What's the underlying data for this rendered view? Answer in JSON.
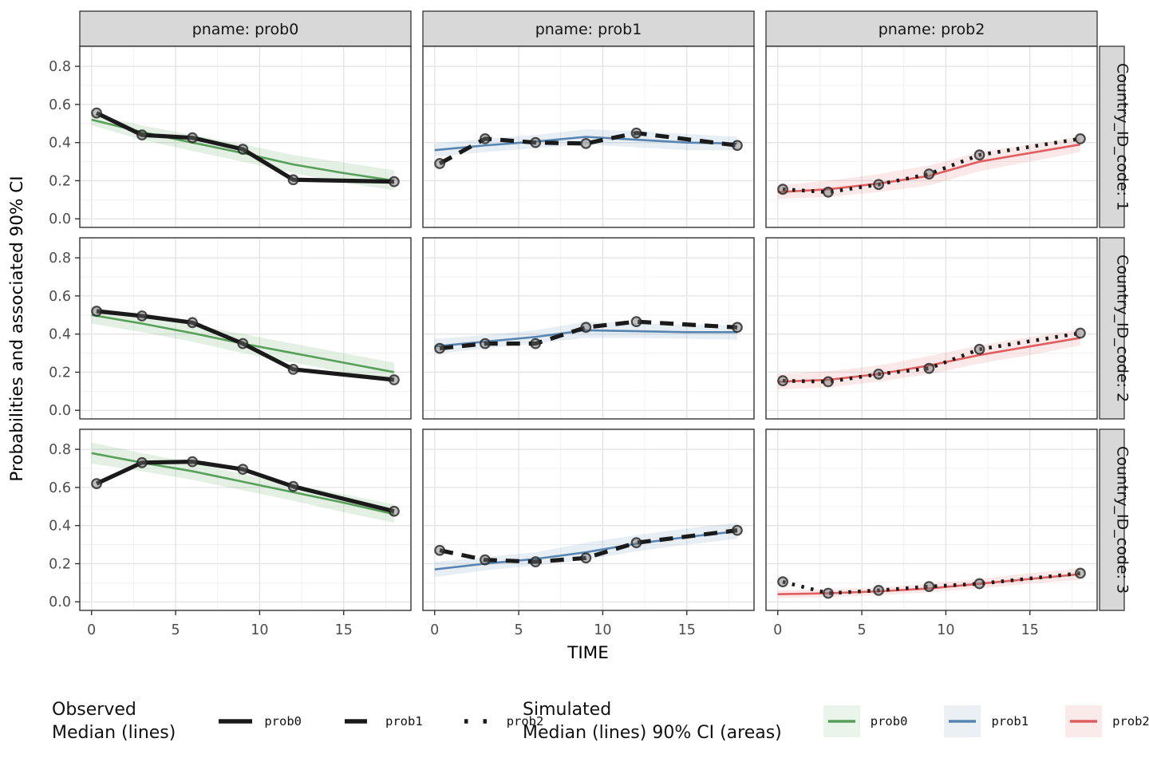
{
  "colors": {
    "observed": "#1a1a1a",
    "prob0": "#57A05A",
    "prob1": "#5784B0",
    "prob2": "#E15E5E",
    "prob0_fill": "rgba(87,160,90,0.16)",
    "prob1_fill": "rgba(87,132,176,0.14)",
    "prob2_fill": "rgba(225,94,94,0.14)",
    "prob0_swatch": "#e9f4ea",
    "prob1_swatch": "#ebf0f5",
    "prob2_swatch": "#fbeaea",
    "strip_bg": "#d8d8d8",
    "strip_border": "#333333",
    "panel_border": "#333333",
    "grid_major": "#e3e3e3",
    "grid_minor": "#f0f0f0",
    "tick_mark": "#333333"
  },
  "legend": {
    "observed": {
      "title_line1": "Observed",
      "title_line2": "Median (lines)",
      "items": [
        {
          "label": "prob0",
          "linestyle": "solid"
        },
        {
          "label": "prob1",
          "linestyle": "dashed"
        },
        {
          "label": "prob2",
          "linestyle": "dotted"
        }
      ]
    },
    "simulated": {
      "title_line1": "Simulated",
      "title_line2": "Median (lines) 90% CI (areas)",
      "items": [
        {
          "label": "prob0",
          "series": "prob0"
        },
        {
          "label": "prob1",
          "series": "prob1"
        },
        {
          "label": "prob2",
          "series": "prob2"
        }
      ]
    }
  },
  "chart_data": {
    "type": "line",
    "xlabel": "TIME",
    "ylabel": "Probabilities and associated 90% CI",
    "x_ticks": [
      0,
      5,
      10,
      15
    ],
    "x_tick_labels": [
      "0",
      "5",
      "10",
      "15"
    ],
    "x_minor_ticks": [
      2.5,
      7.5,
      12.5,
      17.5
    ],
    "y_ticks": [
      0,
      0.2,
      0.4,
      0.6,
      0.8
    ],
    "y_tick_labels": [
      "0.0",
      "0.2",
      "0.4",
      "0.6",
      "0.8"
    ],
    "y_minor_ticks": [
      0.1,
      0.3,
      0.5,
      0.7,
      0.9
    ],
    "xlim": [
      -0.7,
      19.0
    ],
    "ylim": [
      -0.045,
      0.905
    ],
    "grid": true,
    "legend_position": "bottom",
    "col_facets": [
      "pname: prob0",
      "pname: prob1",
      "pname: prob2"
    ],
    "row_facets": [
      "Country_ID_code: 1",
      "Country_ID_code: 2",
      "Country_ID_code: 3"
    ],
    "panels": [
      {
        "facet_row": "Country_ID_code: 1",
        "facet_col": "pname: prob0",
        "series": "prob0",
        "observed": {
          "x": [
            0.3,
            3,
            6,
            9,
            12,
            18
          ],
          "y": [
            0.555,
            0.44,
            0.425,
            0.365,
            0.205,
            0.195
          ]
        },
        "simulated": {
          "x": [
            0,
            3,
            6,
            9,
            12,
            15,
            18
          ],
          "median": [
            0.52,
            0.455,
            0.4,
            0.345,
            0.285,
            0.24,
            0.2
          ],
          "hi": [
            0.55,
            0.49,
            0.44,
            0.39,
            0.335,
            0.295,
            0.255
          ],
          "lo": [
            0.49,
            0.415,
            0.355,
            0.3,
            0.24,
            0.19,
            0.15
          ]
        }
      },
      {
        "facet_row": "Country_ID_code: 1",
        "facet_col": "pname: prob1",
        "series": "prob1",
        "observed": {
          "x": [
            0.3,
            3,
            6,
            9,
            12,
            18
          ],
          "y": [
            0.29,
            0.42,
            0.4,
            0.395,
            0.45,
            0.385
          ]
        },
        "simulated": {
          "x": [
            0,
            3,
            6,
            9,
            12,
            15,
            18
          ],
          "median": [
            0.36,
            0.385,
            0.405,
            0.43,
            0.415,
            0.4,
            0.395
          ],
          "hi": [
            0.395,
            0.42,
            0.44,
            0.47,
            0.46,
            0.445,
            0.43
          ],
          "lo": [
            0.325,
            0.35,
            0.37,
            0.39,
            0.375,
            0.36,
            0.36
          ]
        }
      },
      {
        "facet_row": "Country_ID_code: 1",
        "facet_col": "pname: prob2",
        "series": "prob2",
        "observed": {
          "x": [
            0.3,
            3,
            6,
            9,
            12,
            18
          ],
          "y": [
            0.155,
            0.14,
            0.18,
            0.235,
            0.335,
            0.42
          ]
        },
        "simulated": {
          "x": [
            0,
            3,
            6,
            9,
            12,
            15,
            18
          ],
          "median": [
            0.14,
            0.155,
            0.185,
            0.225,
            0.3,
            0.345,
            0.39
          ],
          "hi": [
            0.175,
            0.2,
            0.235,
            0.28,
            0.35,
            0.39,
            0.43
          ],
          "lo": [
            0.105,
            0.115,
            0.14,
            0.175,
            0.25,
            0.3,
            0.35
          ]
        }
      },
      {
        "facet_row": "Country_ID_code: 2",
        "facet_col": "pname: prob0",
        "series": "prob0",
        "observed": {
          "x": [
            0.3,
            3,
            6,
            9,
            12,
            18
          ],
          "y": [
            0.52,
            0.495,
            0.46,
            0.35,
            0.215,
            0.16
          ]
        },
        "simulated": {
          "x": [
            0,
            3,
            6,
            9,
            12,
            15,
            18
          ],
          "median": [
            0.5,
            0.455,
            0.405,
            0.35,
            0.3,
            0.25,
            0.2
          ],
          "hi": [
            0.545,
            0.5,
            0.45,
            0.4,
            0.35,
            0.3,
            0.25
          ],
          "lo": [
            0.455,
            0.41,
            0.36,
            0.3,
            0.25,
            0.2,
            0.155
          ]
        }
      },
      {
        "facet_row": "Country_ID_code: 2",
        "facet_col": "pname: prob1",
        "series": "prob1",
        "observed": {
          "x": [
            0.3,
            3,
            6,
            9,
            12,
            18
          ],
          "y": [
            0.325,
            0.35,
            0.35,
            0.435,
            0.465,
            0.435
          ]
        },
        "simulated": {
          "x": [
            0,
            3,
            6,
            9,
            12,
            15,
            18
          ],
          "median": [
            0.335,
            0.36,
            0.385,
            0.42,
            0.415,
            0.41,
            0.41
          ],
          "hi": [
            0.375,
            0.395,
            0.42,
            0.465,
            0.455,
            0.45,
            0.445
          ],
          "lo": [
            0.295,
            0.325,
            0.35,
            0.38,
            0.38,
            0.375,
            0.37
          ]
        }
      },
      {
        "facet_row": "Country_ID_code: 2",
        "facet_col": "pname: prob2",
        "series": "prob2",
        "observed": {
          "x": [
            0.3,
            3,
            6,
            9,
            12,
            18
          ],
          "y": [
            0.155,
            0.15,
            0.19,
            0.22,
            0.32,
            0.405
          ]
        },
        "simulated": {
          "x": [
            0,
            3,
            6,
            9,
            12,
            15,
            18
          ],
          "median": [
            0.15,
            0.16,
            0.19,
            0.235,
            0.29,
            0.335,
            0.38
          ],
          "hi": [
            0.19,
            0.205,
            0.235,
            0.285,
            0.34,
            0.385,
            0.425
          ],
          "lo": [
            0.11,
            0.12,
            0.15,
            0.19,
            0.245,
            0.29,
            0.34
          ]
        }
      },
      {
        "facet_row": "Country_ID_code: 3",
        "facet_col": "pname: prob0",
        "series": "prob0",
        "observed": {
          "x": [
            0.3,
            3,
            6,
            9,
            12,
            18
          ],
          "y": [
            0.62,
            0.73,
            0.735,
            0.695,
            0.605,
            0.475
          ]
        },
        "simulated": {
          "x": [
            0,
            3,
            6,
            9,
            12,
            15,
            18
          ],
          "median": [
            0.78,
            0.73,
            0.685,
            0.63,
            0.575,
            0.52,
            0.46
          ],
          "hi": [
            0.835,
            0.78,
            0.73,
            0.67,
            0.615,
            0.565,
            0.51
          ],
          "lo": [
            0.725,
            0.685,
            0.64,
            0.585,
            0.53,
            0.47,
            0.415
          ]
        }
      },
      {
        "facet_row": "Country_ID_code: 3",
        "facet_col": "pname: prob1",
        "series": "prob1",
        "observed": {
          "x": [
            0.3,
            3,
            6,
            9,
            12,
            18
          ],
          "y": [
            0.27,
            0.22,
            0.21,
            0.23,
            0.31,
            0.375
          ]
        },
        "simulated": {
          "x": [
            0,
            3,
            6,
            9,
            12,
            15,
            18
          ],
          "median": [
            0.17,
            0.2,
            0.225,
            0.26,
            0.305,
            0.34,
            0.37
          ],
          "hi": [
            0.21,
            0.235,
            0.26,
            0.31,
            0.35,
            0.385,
            0.415
          ],
          "lo": [
            0.13,
            0.165,
            0.19,
            0.22,
            0.265,
            0.3,
            0.33
          ]
        }
      },
      {
        "facet_row": "Country_ID_code: 3",
        "facet_col": "pname: prob2",
        "series": "prob2",
        "observed": {
          "x": [
            0.3,
            3,
            6,
            9,
            12,
            18
          ],
          "y": [
            0.105,
            0.045,
            0.06,
            0.08,
            0.095,
            0.15
          ]
        },
        "simulated": {
          "x": [
            0,
            3,
            6,
            9,
            12,
            15,
            18
          ],
          "median": [
            0.04,
            0.045,
            0.055,
            0.07,
            0.095,
            0.12,
            0.145
          ],
          "hi": [
            0.06,
            0.065,
            0.075,
            0.095,
            0.12,
            0.15,
            0.175
          ],
          "lo": [
            0.02,
            0.025,
            0.035,
            0.05,
            0.07,
            0.095,
            0.115
          ]
        }
      }
    ]
  }
}
